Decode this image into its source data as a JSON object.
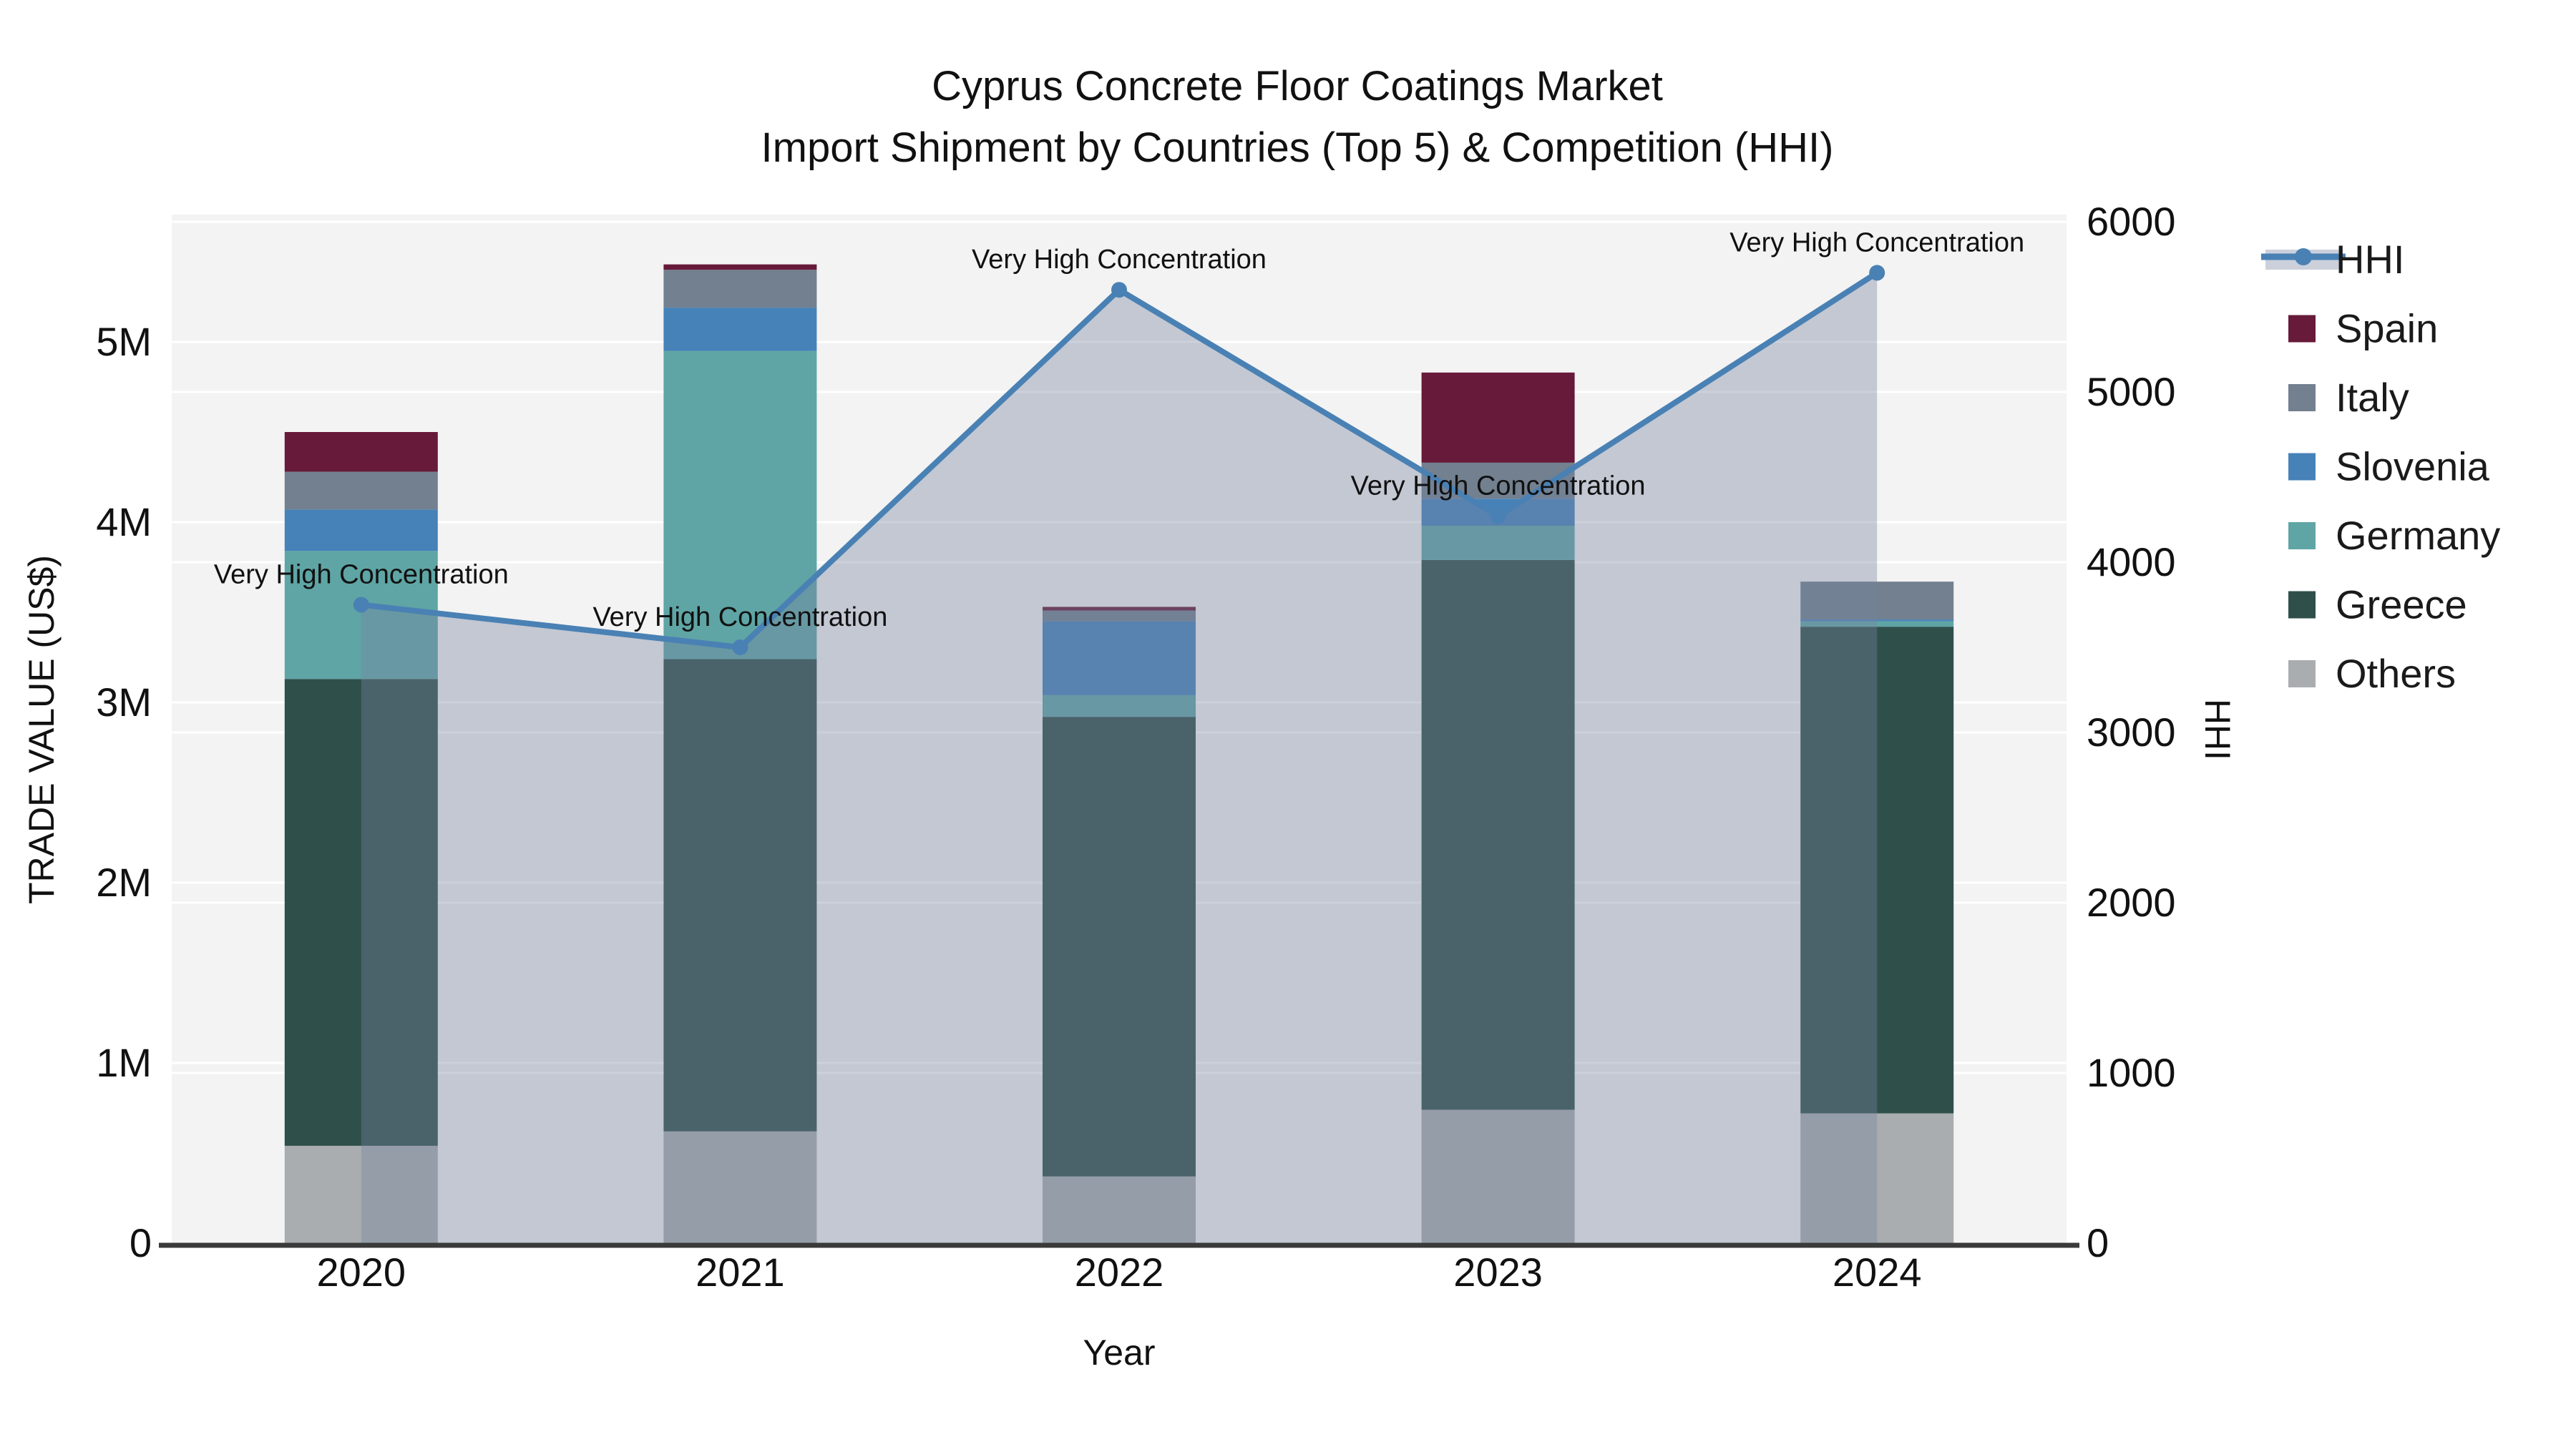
{
  "title": {
    "line1": "Cyprus Concrete Floor Coatings Market",
    "line2": "Import Shipment by Countries (Top 5) & Competition (HHI)"
  },
  "axes": {
    "x_label": "Year",
    "y_left_label": "TRADE VALUE (US$)",
    "y_right_label": "HHI",
    "y_left_ticks": [
      "0",
      "1M",
      "2M",
      "3M",
      "4M",
      "5M"
    ],
    "y_right_ticks": [
      "0",
      "1000",
      "2000",
      "3000",
      "4000",
      "5000",
      "6000"
    ]
  },
  "legend": {
    "items": [
      "HHI",
      "Spain",
      "Italy",
      "Slovenia",
      "Germany",
      "Greece",
      "Others"
    ]
  },
  "chart_data": {
    "type": "bar+line",
    "title": "Cyprus Concrete Floor Coatings Market — Import Shipment by Countries (Top 5) & Competition (HHI)",
    "xlabel": "Year",
    "ylabel_left": "TRADE VALUE (US$)",
    "ylabel_right": "HHI",
    "categories": [
      "2020",
      "2021",
      "2022",
      "2023",
      "2024"
    ],
    "bar_stack_order": "bottom-to-top",
    "bar_unit": "millions USD",
    "series": [
      {
        "name": "Others",
        "color": "#A9ADAF",
        "values": [
          0.54,
          0.62,
          0.37,
          0.74,
          0.72
        ]
      },
      {
        "name": "Greece",
        "color": "#2F4F4B",
        "values": [
          2.59,
          2.62,
          2.55,
          3.05,
          2.7
        ]
      },
      {
        "name": "Germany",
        "color": "#5FA5A5",
        "values": [
          0.71,
          1.71,
          0.12,
          0.19,
          0.03
        ]
      },
      {
        "name": "Slovenia",
        "color": "#4682B8",
        "values": [
          0.23,
          0.24,
          0.41,
          0.15,
          0.01
        ]
      },
      {
        "name": "Italy",
        "color": "#72808F",
        "values": [
          0.21,
          0.21,
          0.06,
          0.2,
          0.21
        ]
      },
      {
        "name": "Spain",
        "color": "#671A39",
        "values": [
          0.22,
          0.03,
          0.02,
          0.5,
          0.0
        ]
      }
    ],
    "bar_totals_musd": [
      4.5,
      5.43,
      3.53,
      4.83,
      3.67
    ],
    "line_series": {
      "name": "HHI",
      "color": "#4A81B4",
      "area_fill_color": "rgba(118,132,160,0.38)",
      "values": [
        3750,
        3500,
        5600,
        4270,
        5700
      ],
      "annotations": [
        "Very High Concentration",
        "Very High Concentration",
        "Very High Concentration",
        "Very High Concentration",
        "Very High Concentration"
      ]
    },
    "y_left_axis": {
      "min": 0,
      "tick_step_musd": 1,
      "ticks_shown_max": 5
    },
    "y_right_axis": {
      "min": 0,
      "max": 6000,
      "tick_step": 1000
    },
    "grid": true,
    "plot_bg_color": "#F3F3F3",
    "legend_position": "right"
  }
}
